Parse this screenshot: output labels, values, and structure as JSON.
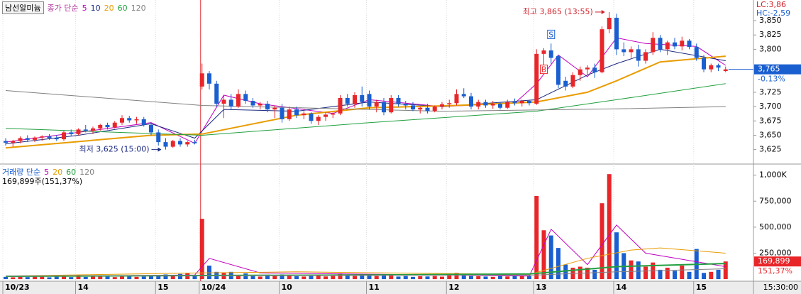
{
  "title": "남선알미늄",
  "range_labels": [
    "LC:3,86",
    "HC:-2,59"
  ],
  "x_end_label": "15:30:00",
  "chart_data": [
    {
      "type": "candlestick",
      "legend_title": "종가 단순",
      "legend_color": "#b0359c",
      "up_color": "#e8262a",
      "down_color": "#1a5fd0",
      "divider": 27,
      "categories": [
        "10/23",
        null,
        null,
        null,
        null,
        null,
        null,
        null,
        null,
        null,
        "14",
        null,
        null,
        null,
        null,
        null,
        null,
        null,
        null,
        null,
        null,
        "15",
        null,
        null,
        null,
        null,
        null,
        "10/24",
        null,
        null,
        null,
        null,
        null,
        null,
        null,
        null,
        null,
        null,
        "10",
        null,
        null,
        null,
        null,
        null,
        null,
        null,
        null,
        null,
        null,
        null,
        "11",
        null,
        null,
        null,
        null,
        null,
        null,
        null,
        null,
        null,
        null,
        "12",
        null,
        null,
        null,
        null,
        null,
        null,
        null,
        null,
        null,
        null,
        null,
        "13",
        null,
        null,
        null,
        null,
        null,
        null,
        null,
        null,
        null,
        null,
        "14",
        null,
        null,
        null,
        null,
        null,
        null,
        null,
        null,
        null,
        null,
        "15",
        null,
        null,
        null,
        null
      ],
      "candles": [
        [
          3640,
          3645,
          3632,
          3637
        ],
        [
          3637,
          3642,
          3630,
          3640
        ],
        [
          3640,
          3648,
          3636,
          3645
        ],
        [
          3645,
          3650,
          3638,
          3642
        ],
        [
          3642,
          3648,
          3638,
          3646
        ],
        [
          3646,
          3650,
          3640,
          3648
        ],
        [
          3648,
          3652,
          3642,
          3645
        ],
        [
          3645,
          3650,
          3640,
          3643
        ],
        [
          3643,
          3658,
          3640,
          3655
        ],
        [
          3655,
          3660,
          3648,
          3652
        ],
        [
          3652,
          3662,
          3650,
          3660
        ],
        [
          3660,
          3668,
          3655,
          3658
        ],
        [
          3658,
          3665,
          3652,
          3662
        ],
        [
          3662,
          3670,
          3658,
          3668
        ],
        [
          3668,
          3672,
          3660,
          3664
        ],
        [
          3664,
          3675,
          3662,
          3672
        ],
        [
          3672,
          3685,
          3668,
          3680
        ],
        [
          3680,
          3684,
          3672,
          3676
        ],
        [
          3676,
          3682,
          3670,
          3678
        ],
        [
          3678,
          3682,
          3665,
          3668
        ],
        [
          3668,
          3672,
          3650,
          3655
        ],
        [
          3655,
          3660,
          3632,
          3638
        ],
        [
          3638,
          3645,
          3625,
          3630
        ],
        [
          3630,
          3642,
          3628,
          3640
        ],
        [
          3640,
          3645,
          3630,
          3634
        ],
        [
          3634,
          3640,
          3630,
          3638
        ],
        [
          3638,
          3642,
          3634,
          3636
        ],
        [
          3735,
          3775,
          3730,
          3758
        ],
        [
          3758,
          3762,
          3730,
          3740
        ],
        [
          3740,
          3745,
          3700,
          3705
        ],
        [
          3705,
          3720,
          3680,
          3712
        ],
        [
          3712,
          3722,
          3695,
          3700
        ],
        [
          3700,
          3730,
          3698,
          3722
        ],
        [
          3722,
          3728,
          3705,
          3710
        ],
        [
          3710,
          3715,
          3698,
          3702
        ],
        [
          3702,
          3708,
          3695,
          3705
        ],
        [
          3705,
          3710,
          3690,
          3695
        ],
        [
          3695,
          3702,
          3680,
          3698
        ],
        [
          3698,
          3705,
          3672,
          3678
        ],
        [
          3678,
          3700,
          3675,
          3695
        ],
        [
          3695,
          3700,
          3680,
          3685
        ],
        [
          3685,
          3692,
          3678,
          3688
        ],
        [
          3688,
          3690,
          3670,
          3675
        ],
        [
          3675,
          3685,
          3668,
          3682
        ],
        [
          3682,
          3690,
          3675,
          3686
        ],
        [
          3686,
          3690,
          3680,
          3688
        ],
        [
          3688,
          3720,
          3685,
          3715
        ],
        [
          3715,
          3722,
          3700,
          3705
        ],
        [
          3705,
          3725,
          3698,
          3720
        ],
        [
          3720,
          3735,
          3700,
          3708
        ],
        [
          3722,
          3728,
          3695,
          3700
        ],
        [
          3700,
          3712,
          3690,
          3708
        ],
        [
          3708,
          3715,
          3685,
          3690
        ],
        [
          3690,
          3720,
          3688,
          3715
        ],
        [
          3715,
          3720,
          3700,
          3705
        ],
        [
          3705,
          3710,
          3695,
          3702
        ],
        [
          3702,
          3708,
          3692,
          3695
        ],
        [
          3695,
          3700,
          3688,
          3698
        ],
        [
          3698,
          3705,
          3688,
          3692
        ],
        [
          3692,
          3702,
          3690,
          3700
        ],
        [
          3700,
          3708,
          3695,
          3704
        ],
        [
          3704,
          3712,
          3698,
          3706
        ],
        [
          3706,
          3730,
          3702,
          3722
        ],
        [
          3722,
          3732,
          3715,
          3718
        ],
        [
          3718,
          3724,
          3695,
          3700
        ],
        [
          3700,
          3712,
          3695,
          3708
        ],
        [
          3708,
          3712,
          3698,
          3702
        ],
        [
          3702,
          3710,
          3696,
          3705
        ],
        [
          3705,
          3708,
          3695,
          3698
        ],
        [
          3698,
          3712,
          3696,
          3708
        ],
        [
          3708,
          3714,
          3702,
          3706
        ],
        [
          3706,
          3712,
          3700,
          3710
        ],
        [
          3710,
          3712,
          3702,
          3706
        ],
        [
          3705,
          3800,
          3703,
          3792
        ],
        [
          3792,
          3802,
          3770,
          3798
        ],
        [
          3798,
          3810,
          3775,
          3785
        ],
        [
          3788,
          3790,
          3732,
          3738
        ],
        [
          3745,
          3752,
          3728,
          3735
        ],
        [
          3735,
          3760,
          3732,
          3755
        ],
        [
          3755,
          3770,
          3745,
          3765
        ],
        [
          3765,
          3772,
          3755,
          3768
        ],
        [
          3768,
          3775,
          3750,
          3760
        ],
        [
          3760,
          3840,
          3758,
          3835
        ],
        [
          3835,
          3865,
          3828,
          3855
        ],
        [
          3855,
          3862,
          3790,
          3800
        ],
        [
          3800,
          3812,
          3788,
          3795
        ],
        [
          3795,
          3805,
          3785,
          3800
        ],
        [
          3800,
          3808,
          3770,
          3780
        ],
        [
          3780,
          3800,
          3775,
          3795
        ],
        [
          3795,
          3830,
          3790,
          3820
        ],
        [
          3820,
          3825,
          3795,
          3800
        ],
        [
          3800,
          3815,
          3790,
          3812
        ],
        [
          3812,
          3820,
          3800,
          3805
        ],
        [
          3805,
          3822,
          3798,
          3815
        ],
        [
          3815,
          3818,
          3800,
          3804
        ],
        [
          3804,
          3810,
          3780,
          3785
        ],
        [
          3785,
          3790,
          3760,
          3765
        ],
        [
          3765,
          3775,
          3760,
          3772
        ],
        [
          3772,
          3775,
          3762,
          3768
        ],
        [
          3762,
          3770,
          3760,
          3765
        ]
      ],
      "series": [
        {
          "name": "5",
          "color": "#c000c0",
          "x": [
            0,
            10,
            20,
            26,
            30,
            35,
            45,
            50,
            60,
            70,
            73,
            76,
            80,
            84,
            88,
            95,
            99
          ],
          "values": [
            3638,
            3655,
            3672,
            3636,
            3720,
            3705,
            3688,
            3712,
            3700,
            3706,
            3740,
            3790,
            3752,
            3820,
            3810,
            3805,
            3772
          ]
        },
        {
          "name": "10",
          "color": "#1c2a80",
          "x": [
            0,
            10,
            20,
            26,
            30,
            40,
            50,
            60,
            73,
            80,
            84,
            90,
            99
          ],
          "values": [
            3635,
            3650,
            3670,
            3645,
            3695,
            3692,
            3708,
            3700,
            3712,
            3755,
            3775,
            3800,
            3780
          ]
        },
        {
          "name": "20",
          "color": "#e89c00",
          "x": [
            0,
            20,
            27,
            40,
            50,
            62,
            73,
            80,
            84,
            90,
            99
          ],
          "values": [
            3628,
            3650,
            3652,
            3685,
            3698,
            3702,
            3708,
            3725,
            3745,
            3778,
            3788
          ]
        },
        {
          "name": "60",
          "color": "#22a040",
          "x": [
            0,
            27,
            50,
            73,
            84,
            99
          ],
          "values": [
            3662,
            3650,
            3672,
            3692,
            3712,
            3740
          ]
        },
        {
          "name": "120",
          "color": "#808080",
          "x": [
            0,
            27,
            60,
            84,
            99
          ],
          "values": [
            3728,
            3702,
            3692,
            3696,
            3700
          ]
        }
      ],
      "ylim": [
        3601,
        3886
      ],
      "yticks": [
        {
          "value": 3850,
          "label": "3,850"
        },
        {
          "value": 3825,
          "label": "3,825"
        },
        {
          "value": 3800,
          "label": "3,800"
        },
        {
          "value": 3725,
          "label": "3,725"
        },
        {
          "value": 3700,
          "label": "3,700"
        },
        {
          "value": 3675,
          "label": "3,675"
        },
        {
          "value": 3650,
          "label": "3,650"
        },
        {
          "value": 3625,
          "label": "3,625"
        }
      ],
      "price_tag": {
        "value": 3765,
        "label": "3,765",
        "change": "-0.13%"
      },
      "annotations": [
        {
          "text": "최고 3,865 (13:55)",
          "x": 83,
          "y": 3865,
          "color": "#d0202a"
        },
        {
          "text": "최저 3,625 (15:00)",
          "x": 22,
          "y": 3625,
          "color": "#1c2a80"
        }
      ],
      "signals": [
        {
          "text": "B",
          "x": 74,
          "y": 3765,
          "color": "#e8262a"
        },
        {
          "text": "S",
          "x": 75,
          "y": 3826,
          "color": "#1a5fd0"
        }
      ]
    },
    {
      "type": "bar",
      "legend_title": "거래량 단순",
      "legend_color": "#1a5fd0",
      "header": "169,899주(151,37%)",
      "values": [
        22000,
        18000,
        25000,
        20000,
        30000,
        24000,
        18000,
        26000,
        35000,
        20000,
        40000,
        22000,
        28000,
        30000,
        25000,
        20000,
        35000,
        28000,
        22000,
        26000,
        30000,
        38000,
        45000,
        30000,
        50000,
        60000,
        40000,
        580000,
        130000,
        70000,
        60000,
        70000,
        40000,
        55000,
        30000,
        25000,
        35000,
        30000,
        45000,
        35000,
        28000,
        25000,
        30000,
        38000,
        26000,
        30000,
        55000,
        35000,
        30000,
        40000,
        45000,
        30000,
        35000,
        40000,
        25000,
        30000,
        22000,
        28000,
        26000,
        30000,
        24000,
        35000,
        60000,
        40000,
        30000,
        28000,
        25000,
        22000,
        30000,
        26000,
        35000,
        28000,
        32000,
        800000,
        470000,
        420000,
        300000,
        140000,
        110000,
        120000,
        110000,
        90000,
        730000,
        1010000,
        450000,
        250000,
        180000,
        170000,
        120000,
        160000,
        90000,
        110000,
        80000,
        130000,
        70000,
        290000,
        60000,
        70000,
        90000,
        169899
      ],
      "series": [
        {
          "name": "5",
          "color": "#c000c0",
          "x": [
            0,
            26,
            28,
            35,
            72,
            75,
            80,
            84,
            88,
            99
          ],
          "values": [
            25000,
            40000,
            200000,
            60000,
            30000,
            480000,
            140000,
            520000,
            250000,
            120000
          ]
        },
        {
          "name": "20",
          "color": "#e89c00",
          "x": [
            0,
            27,
            40,
            72,
            80,
            86,
            90,
            99
          ],
          "values": [
            30000,
            60000,
            70000,
            45000,
            200000,
            280000,
            300000,
            250000
          ]
        },
        {
          "name": "60",
          "color": "#22a040",
          "x": [
            0,
            50,
            72,
            84,
            99
          ],
          "values": [
            28000,
            40000,
            50000,
            120000,
            150000
          ]
        },
        {
          "name": "120",
          "color": "#808080",
          "x": [
            0,
            73,
            84,
            99
          ],
          "values": [
            30000,
            40000,
            70000,
            100000
          ]
        }
      ],
      "ylim": [
        -20000,
        1100000
      ],
      "yticks": [
        {
          "value": 1000000,
          "label": "1,000K"
        },
        {
          "value": 750000,
          "label": "750,000"
        },
        {
          "value": 500000,
          "label": "500,000"
        },
        {
          "value": 250000,
          "label": "250,000"
        }
      ],
      "volume_tag": {
        "value": 169899,
        "label": "169,899",
        "ratio": "151,37%"
      }
    }
  ]
}
